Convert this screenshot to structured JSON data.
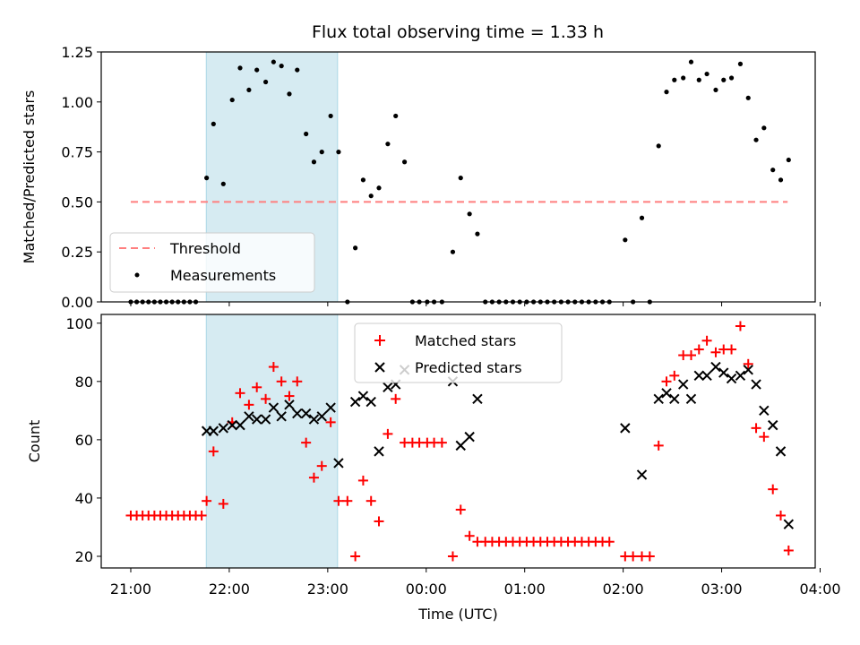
{
  "title": "Flux total observing time = 1.33 h",
  "colors": {
    "shade": "#add8e6",
    "threshold": "#ff7f7f",
    "measurement": "#000000",
    "matched": "#ff0000",
    "predicted": "#000000"
  },
  "chart_data": [
    {
      "type": "scatter",
      "title": "Flux total observing time = 1.33 h",
      "ylabel": "Matched/Predicted stars",
      "xlabel": "",
      "x_unit": "time (UTC, hours after 21:00)",
      "xlim": [
        -0.3,
        6.95
      ],
      "ylim": [
        0,
        1.25
      ],
      "y_ticks": [
        "0.00",
        "0.25",
        "0.50",
        "0.75",
        "1.00",
        "1.25"
      ],
      "shaded_interval": [
        "21:46",
        "23:06"
      ],
      "legend": {
        "placement": "lower-left",
        "entries": [
          "Threshold",
          "Measurements"
        ]
      },
      "series": [
        {
          "name": "Threshold",
          "kind": "dashed-line",
          "x": [
            0.0,
            6.67
          ],
          "y": [
            0.5,
            0.5
          ]
        },
        {
          "name": "Measurements",
          "kind": "points",
          "points": [
            [
              0.0,
              0
            ],
            [
              0.06,
              0
            ],
            [
              0.12,
              0
            ],
            [
              0.18,
              0
            ],
            [
              0.24,
              0
            ],
            [
              0.3,
              0
            ],
            [
              0.36,
              0
            ],
            [
              0.42,
              0
            ],
            [
              0.48,
              0
            ],
            [
              0.54,
              0
            ],
            [
              0.6,
              0
            ],
            [
              0.66,
              0
            ],
            [
              0.77,
              0.62
            ],
            [
              0.84,
              0.89
            ],
            [
              0.94,
              0.59
            ],
            [
              1.03,
              1.01
            ],
            [
              1.11,
              1.17
            ],
            [
              1.2,
              1.06
            ],
            [
              1.28,
              1.16
            ],
            [
              1.37,
              1.1
            ],
            [
              1.45,
              1.2
            ],
            [
              1.53,
              1.18
            ],
            [
              1.61,
              1.04
            ],
            [
              1.69,
              1.16
            ],
            [
              1.78,
              0.84
            ],
            [
              1.86,
              0.7
            ],
            [
              1.94,
              0.75
            ],
            [
              2.03,
              0.93
            ],
            [
              2.11,
              0.75
            ],
            [
              2.2,
              0
            ],
            [
              2.28,
              0.27
            ],
            [
              2.36,
              0.61
            ],
            [
              2.44,
              0.53
            ],
            [
              2.52,
              0.57
            ],
            [
              2.61,
              0.79
            ],
            [
              2.69,
              0.93
            ],
            [
              2.78,
              0.7
            ],
            [
              2.86,
              0
            ],
            [
              2.93,
              0
            ],
            [
              3.01,
              0
            ],
            [
              3.08,
              0
            ],
            [
              3.16,
              0
            ],
            [
              3.27,
              0.25
            ],
            [
              3.35,
              0.62
            ],
            [
              3.44,
              0.44
            ],
            [
              3.52,
              0.34
            ],
            [
              3.6,
              0
            ],
            [
              3.67,
              0
            ],
            [
              3.74,
              0
            ],
            [
              3.81,
              0
            ],
            [
              3.88,
              0
            ],
            [
              3.95,
              0
            ],
            [
              4.02,
              0
            ],
            [
              4.09,
              0
            ],
            [
              4.16,
              0
            ],
            [
              4.23,
              0
            ],
            [
              4.3,
              0
            ],
            [
              4.37,
              0
            ],
            [
              4.44,
              0
            ],
            [
              4.51,
              0
            ],
            [
              4.58,
              0
            ],
            [
              4.65,
              0
            ],
            [
              4.72,
              0
            ],
            [
              4.79,
              0
            ],
            [
              4.86,
              0
            ],
            [
              5.02,
              0.31
            ],
            [
              5.1,
              0
            ],
            [
              5.19,
              0.42
            ],
            [
              5.27,
              0
            ],
            [
              5.36,
              0.78
            ],
            [
              5.44,
              1.05
            ],
            [
              5.52,
              1.11
            ],
            [
              5.61,
              1.12
            ],
            [
              5.69,
              1.2
            ],
            [
              5.77,
              1.11
            ],
            [
              5.85,
              1.14
            ],
            [
              5.94,
              1.06
            ],
            [
              6.02,
              1.11
            ],
            [
              6.1,
              1.12
            ],
            [
              6.19,
              1.19
            ],
            [
              6.27,
              1.02
            ],
            [
              6.35,
              0.81
            ],
            [
              6.43,
              0.87
            ],
            [
              6.52,
              0.66
            ],
            [
              6.6,
              0.61
            ],
            [
              6.68,
              0.71
            ]
          ]
        }
      ]
    },
    {
      "type": "scatter",
      "xlabel": "Time (UTC)",
      "ylabel": "Count",
      "x_unit": "time (UTC, hours after 21:00)",
      "xlim": [
        -0.3,
        6.95
      ],
      "ylim": [
        16,
        103
      ],
      "x_ticks": [
        "21:00",
        "22:00",
        "23:00",
        "00:00",
        "01:00",
        "02:00",
        "03:00",
        "04:00"
      ],
      "y_ticks": [
        "20",
        "40",
        "60",
        "80",
        "100"
      ],
      "shaded_interval": [
        "21:46",
        "23:06"
      ],
      "legend": {
        "placement": "upper-center",
        "entries": [
          "Matched stars",
          "Predicted stars"
        ]
      },
      "series": [
        {
          "name": "Matched stars",
          "marker": "+",
          "points": [
            [
              0.0,
              34
            ],
            [
              0.06,
              34
            ],
            [
              0.12,
              34
            ],
            [
              0.18,
              34
            ],
            [
              0.24,
              34
            ],
            [
              0.3,
              34
            ],
            [
              0.36,
              34
            ],
            [
              0.42,
              34
            ],
            [
              0.48,
              34
            ],
            [
              0.54,
              34
            ],
            [
              0.6,
              34
            ],
            [
              0.66,
              34
            ],
            [
              0.72,
              34
            ],
            [
              0.77,
              39
            ],
            [
              0.84,
              56
            ],
            [
              0.94,
              38
            ],
            [
              1.03,
              66
            ],
            [
              1.11,
              76
            ],
            [
              1.2,
              72
            ],
            [
              1.28,
              78
            ],
            [
              1.37,
              74
            ],
            [
              1.45,
              85
            ],
            [
              1.53,
              80
            ],
            [
              1.61,
              75
            ],
            [
              1.69,
              80
            ],
            [
              1.78,
              59
            ],
            [
              1.86,
              47
            ],
            [
              1.94,
              51
            ],
            [
              2.03,
              66
            ],
            [
              2.11,
              39
            ],
            [
              2.2,
              39
            ],
            [
              2.28,
              20
            ],
            [
              2.36,
              46
            ],
            [
              2.44,
              39
            ],
            [
              2.52,
              32
            ],
            [
              2.61,
              62
            ],
            [
              2.69,
              74
            ],
            [
              2.78,
              59
            ],
            [
              2.86,
              59
            ],
            [
              2.93,
              59
            ],
            [
              3.01,
              59
            ],
            [
              3.08,
              59
            ],
            [
              3.16,
              59
            ],
            [
              3.27,
              20
            ],
            [
              3.35,
              36
            ],
            [
              3.44,
              27
            ],
            [
              3.52,
              25
            ],
            [
              3.6,
              25
            ],
            [
              3.67,
              25
            ],
            [
              3.74,
              25
            ],
            [
              3.81,
              25
            ],
            [
              3.88,
              25
            ],
            [
              3.95,
              25
            ],
            [
              4.02,
              25
            ],
            [
              4.09,
              25
            ],
            [
              4.16,
              25
            ],
            [
              4.23,
              25
            ],
            [
              4.3,
              25
            ],
            [
              4.37,
              25
            ],
            [
              4.44,
              25
            ],
            [
              4.51,
              25
            ],
            [
              4.58,
              25
            ],
            [
              4.65,
              25
            ],
            [
              4.72,
              25
            ],
            [
              4.79,
              25
            ],
            [
              4.86,
              25
            ],
            [
              5.02,
              20
            ],
            [
              5.1,
              20
            ],
            [
              5.19,
              20
            ],
            [
              5.27,
              20
            ],
            [
              5.36,
              58
            ],
            [
              5.44,
              80
            ],
            [
              5.52,
              82
            ],
            [
              5.61,
              89
            ],
            [
              5.69,
              89
            ],
            [
              5.77,
              91
            ],
            [
              5.85,
              94
            ],
            [
              5.94,
              90
            ],
            [
              6.02,
              91
            ],
            [
              6.1,
              91
            ],
            [
              6.19,
              99
            ],
            [
              6.27,
              86
            ],
            [
              6.35,
              64
            ],
            [
              6.43,
              61
            ],
            [
              6.52,
              43
            ],
            [
              6.6,
              34
            ],
            [
              6.68,
              22
            ]
          ]
        },
        {
          "name": "Predicted stars",
          "marker": "x",
          "points": [
            [
              0.77,
              63
            ],
            [
              0.84,
              63
            ],
            [
              0.94,
              64
            ],
            [
              1.03,
              65
            ],
            [
              1.11,
              65
            ],
            [
              1.2,
              68
            ],
            [
              1.28,
              67
            ],
            [
              1.37,
              67
            ],
            [
              1.45,
              71
            ],
            [
              1.53,
              68
            ],
            [
              1.61,
              72
            ],
            [
              1.69,
              69
            ],
            [
              1.78,
              69
            ],
            [
              1.86,
              67
            ],
            [
              1.94,
              68
            ],
            [
              2.03,
              71
            ],
            [
              2.11,
              52
            ],
            [
              2.28,
              73
            ],
            [
              2.36,
              75
            ],
            [
              2.44,
              73
            ],
            [
              2.52,
              56
            ],
            [
              2.61,
              78
            ],
            [
              2.69,
              79
            ],
            [
              2.78,
              84
            ],
            [
              3.27,
              80
            ],
            [
              3.35,
              58
            ],
            [
              3.44,
              61
            ],
            [
              3.52,
              74
            ],
            [
              5.02,
              64
            ],
            [
              5.19,
              48
            ],
            [
              5.36,
              74
            ],
            [
              5.44,
              76
            ],
            [
              5.52,
              74
            ],
            [
              5.61,
              79
            ],
            [
              5.69,
              74
            ],
            [
              5.77,
              82
            ],
            [
              5.85,
              82
            ],
            [
              5.94,
              85
            ],
            [
              6.02,
              83
            ],
            [
              6.1,
              81
            ],
            [
              6.19,
              82
            ],
            [
              6.27,
              84
            ],
            [
              6.35,
              79
            ],
            [
              6.43,
              70
            ],
            [
              6.52,
              65
            ],
            [
              6.6,
              56
            ],
            [
              6.68,
              31
            ]
          ]
        }
      ]
    }
  ]
}
